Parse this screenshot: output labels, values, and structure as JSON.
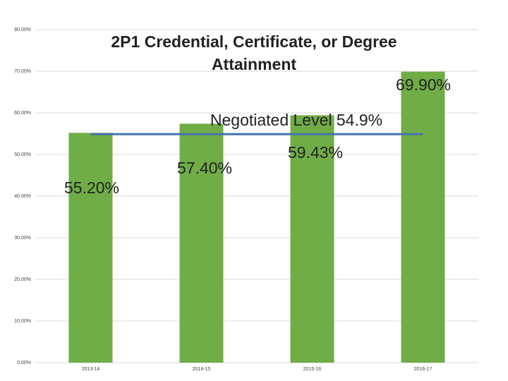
{
  "chart_data": {
    "type": "bar",
    "title": [
      "2P1 Credential, Certificate, or Degree",
      "Attainment"
    ],
    "categories": [
      "2013-14",
      "2014-15",
      "2015-16",
      "2016-17"
    ],
    "values": [
      55.2,
      57.4,
      59.43,
      69.9
    ],
    "value_labels": [
      "55.20%",
      "57.40%",
      "59.43%",
      "69.90%"
    ],
    "color": "#70ad47",
    "target": {
      "name": "Negotiated Level 54.9%",
      "value": 54.9,
      "color": "#4472a8"
    },
    "ylim": [
      0,
      80
    ],
    "yticks": [
      {
        "value": 0,
        "label": "0.00%"
      },
      {
        "value": 10,
        "label": "10.00%"
      },
      {
        "value": 20,
        "label": "20.00%"
      },
      {
        "value": 30,
        "label": "30.00%"
      },
      {
        "value": 40,
        "label": "40.00%"
      },
      {
        "value": 50,
        "label": "50.00%"
      },
      {
        "value": 60,
        "label": "60.00%"
      },
      {
        "value": 70,
        "label": "70.00%"
      },
      {
        "value": 80,
        "label": "80.00%"
      }
    ],
    "grid": true
  }
}
